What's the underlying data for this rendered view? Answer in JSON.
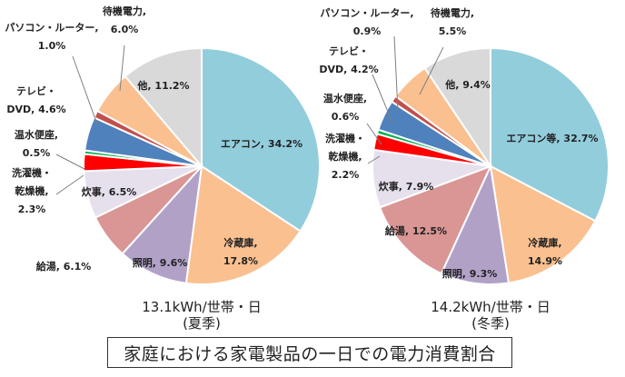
{
  "chart_data": [
    {
      "type": "pie",
      "subtitle": "13.1kWh/世帯・日",
      "season": "(夏季)",
      "slices": [
        {
          "name": "エアコン",
          "label": "エアコン, 34.2%",
          "value": 34.2,
          "color": "#92CDDC"
        },
        {
          "name": "冷蔵庫",
          "label": "冷蔵庫,|17.8%",
          "value": 17.8,
          "color": "#FAC090"
        },
        {
          "name": "照明",
          "label": "照明, 9.6%",
          "value": 9.6,
          "color": "#B2A1C7"
        },
        {
          "name": "給湯",
          "label": "給湯, 6.1%",
          "value": 6.1,
          "color": "#D99694"
        },
        {
          "name": "炊事",
          "label": "炊事, 6.5%",
          "value": 6.5,
          "color": "#E6E0EC"
        },
        {
          "name": "洗濯機・乾燥機",
          "label": "洗濯機・|乾燥機,|2.3%",
          "value": 2.3,
          "color": "#FF0000"
        },
        {
          "name": "温水便座",
          "label": "温水便座,|0.5%",
          "value": 0.5,
          "color": "#00B050"
        },
        {
          "name": "テレビ・DVD",
          "label": "テレビ・|DVD, 4.6%",
          "value": 4.6,
          "color": "#4F81BD"
        },
        {
          "name": "パソコン・ルーター",
          "label": "パソコン・ルーター,|1.0%",
          "value": 1.0,
          "color": "#C0504D"
        },
        {
          "name": "待機電力",
          "label": "待機電力,|6.0%",
          "value": 6.0,
          "color": "#FAC090"
        },
        {
          "name": "他",
          "label": "他, 11.2%",
          "value": 11.2,
          "color": "#D9D9D9"
        }
      ]
    },
    {
      "type": "pie",
      "subtitle": "14.2kWh/世帯・日",
      "season": "(冬季)",
      "slices": [
        {
          "name": "エアコン等",
          "label": "エアコン等, 32.7%",
          "value": 32.7,
          "color": "#92CDDC"
        },
        {
          "name": "冷蔵庫",
          "label": "冷蔵庫,|14.9%",
          "value": 14.9,
          "color": "#FAC090"
        },
        {
          "name": "照明",
          "label": "照明, 9.3%",
          "value": 9.3,
          "color": "#B2A1C7"
        },
        {
          "name": "給湯",
          "label": "給湯, 12.5%",
          "value": 12.5,
          "color": "#D99694"
        },
        {
          "name": "炊事",
          "label": "炊事, 7.9%",
          "value": 7.9,
          "color": "#E6E0EC"
        },
        {
          "name": "洗濯機・乾燥機",
          "label": "洗濯機・|乾燥機,|2.2%",
          "value": 2.2,
          "color": "#FF0000"
        },
        {
          "name": "温水便座",
          "label": "温水便座,|0.6%",
          "value": 0.6,
          "color": "#00B050"
        },
        {
          "name": "テレビ・DVD",
          "label": "テレビ・|DVD, 4.2%",
          "value": 4.2,
          "color": "#4F81BD"
        },
        {
          "name": "パソコン・ルーター",
          "label": "パソコン・ルーター,|0.9%",
          "value": 0.9,
          "color": "#C0504D"
        },
        {
          "name": "待機電力",
          "label": "待機電力,|5.5%",
          "value": 5.5,
          "color": "#FAC090"
        },
        {
          "name": "他",
          "label": "他, 9.4%",
          "value": 9.4,
          "color": "#D9D9D9"
        }
      ]
    }
  ],
  "caption": "家庭における家電製品の一日での電力消費割合"
}
